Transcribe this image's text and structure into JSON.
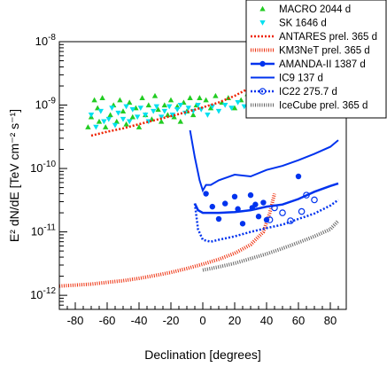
{
  "chart_data": {
    "type": "scatter",
    "xlabel": "Declination [degrees]",
    "ylabel": "E² dN/dE [TeV cm⁻² s⁻¹]",
    "xlim": [
      -90,
      90
    ],
    "ylim": [
      6e-13,
      1e-08
    ],
    "yscale": "log",
    "x_ticks": [
      -80,
      -60,
      -40,
      -20,
      0,
      20,
      40,
      60,
      80
    ],
    "x_tick_labels": [
      "-80",
      "-60",
      "-40",
      "-20",
      "0",
      "20",
      "40",
      "60",
      "80"
    ],
    "y_ticks": [
      1e-12,
      1e-11,
      1e-10,
      1e-09,
      1e-08
    ],
    "y_tick_labels": [
      {
        "base": "10",
        "exp": "-12"
      },
      {
        "base": "10",
        "exp": "-11"
      },
      {
        "base": "10",
        "exp": "-10"
      },
      {
        "base": "10",
        "exp": "-9"
      },
      {
        "base": "10",
        "exp": "-8"
      }
    ],
    "legend_position": "top-right",
    "series": [
      {
        "name": "MACRO 2044 d",
        "kind": "markers",
        "marker": "triangle-up",
        "color": "#22cc22",
        "points": [
          [
            -72,
            4.5e-10
          ],
          [
            -70,
            6.5e-10
          ],
          [
            -68,
            1.2e-09
          ],
          [
            -66,
            9e-10
          ],
          [
            -65,
            5.5e-10
          ],
          [
            -63,
            1.3e-09
          ],
          [
            -61,
            4.5e-10
          ],
          [
            -58,
            7e-10
          ],
          [
            -56,
            1e-09
          ],
          [
            -54,
            5.5e-10
          ],
          [
            -52,
            1.2e-09
          ],
          [
            -50,
            8e-10
          ],
          [
            -48,
            5e-10
          ],
          [
            -46,
            1.1e-09
          ],
          [
            -44,
            6.5e-10
          ],
          [
            -42,
            9e-10
          ],
          [
            -40,
            4.5e-10
          ],
          [
            -38,
            1.3e-09
          ],
          [
            -36,
            7e-10
          ],
          [
            -34,
            1e-09
          ],
          [
            -32,
            6e-10
          ],
          [
            -30,
            1.4e-09
          ],
          [
            -28,
            8.5e-10
          ],
          [
            -26,
            5.5e-10
          ],
          [
            -24,
            1e-09
          ],
          [
            -22,
            7e-10
          ],
          [
            -20,
            1.2e-09
          ],
          [
            -18,
            6.5e-10
          ],
          [
            -16,
            9.5e-10
          ],
          [
            -14,
            5.5e-10
          ],
          [
            -12,
            1.1e-09
          ],
          [
            -10,
            8e-10
          ],
          [
            -8,
            1.3e-09
          ],
          [
            -6,
            7e-10
          ],
          [
            -4,
            1e-09
          ],
          [
            -2,
            1.3e-09
          ],
          [
            2,
            1.2e-09
          ],
          [
            5,
            9e-10
          ],
          [
            8,
            1.4e-09
          ],
          [
            12,
            1.1e-09
          ],
          [
            16,
            1.3e-09
          ],
          [
            20,
            9e-10
          ],
          [
            24,
            1.2e-09
          ],
          [
            28,
            1.5e-09
          ],
          [
            32,
            1.1e-09
          ],
          [
            36,
            1.3e-09
          ],
          [
            40,
            1.2e-09
          ],
          [
            45,
            1.6e-09
          ],
          [
            50,
            1.3e-09
          ],
          [
            55,
            1.5e-09
          ],
          [
            60,
            2.2e-09
          ],
          [
            65,
            4e-09
          ],
          [
            68,
            5e-09
          ]
        ]
      },
      {
        "name": "SK 1646 d",
        "kind": "markers",
        "marker": "triangle-down",
        "color": "#00e0f0",
        "points": [
          [
            -70,
            7e-10
          ],
          [
            -67,
            4.5e-10
          ],
          [
            -64,
            8e-10
          ],
          [
            -62,
            5.5e-10
          ],
          [
            -59,
            6e-10
          ],
          [
            -57,
            9e-10
          ],
          [
            -55,
            4.8e-10
          ],
          [
            -53,
            7.5e-10
          ],
          [
            -50,
            6e-10
          ],
          [
            -48,
            9.5e-10
          ],
          [
            -46,
            5.5e-10
          ],
          [
            -44,
            8.5e-10
          ],
          [
            -41,
            6.5e-10
          ],
          [
            -39,
            9e-10
          ],
          [
            -36,
            7e-10
          ],
          [
            -34,
            5.5e-10
          ],
          [
            -31,
            8e-10
          ],
          [
            -29,
            9.5e-10
          ],
          [
            -26,
            6.5e-10
          ],
          [
            -24,
            8e-10
          ],
          [
            -21,
            9.5e-10
          ],
          [
            -19,
            7e-10
          ],
          [
            -16,
            8.5e-10
          ],
          [
            -14,
            1e-09
          ],
          [
            -11,
            7.5e-10
          ],
          [
            -9,
            9e-10
          ],
          [
            -6,
            8e-10
          ],
          [
            -3,
            1e-09
          ],
          [
            -1,
            8.5e-10
          ],
          [
            3,
            7e-10
          ],
          [
            6,
            9.5e-10
          ],
          [
            10,
            8e-10
          ],
          [
            14,
            1e-09
          ],
          [
            18,
            9e-10
          ],
          [
            22,
            1.1e-09
          ],
          [
            26,
            9.5e-10
          ],
          [
            30,
            1.2e-09
          ],
          [
            34,
            1e-09
          ],
          [
            38,
            1.3e-09
          ],
          [
            42,
            1.1e-09
          ],
          [
            46,
            1.3e-09
          ]
        ]
      },
      {
        "name": "ANTARES prel. 365 d",
        "kind": "line",
        "style": "dotted",
        "color": "#ee2200",
        "points": [
          [
            -70,
            3.3e-10
          ],
          [
            -60,
            3.8e-10
          ],
          [
            -50,
            4.3e-10
          ],
          [
            -40,
            5e-10
          ],
          [
            -30,
            5.8e-10
          ],
          [
            -20,
            6.7e-10
          ],
          [
            -10,
            7.8e-10
          ],
          [
            0,
            9.2e-10
          ],
          [
            10,
            1.1e-09
          ],
          [
            20,
            1.4e-09
          ],
          [
            30,
            1.9e-09
          ],
          [
            40,
            3e-09
          ],
          [
            47,
            5.5e-09
          ]
        ]
      },
      {
        "name": "KM3NeT prel. 365 d",
        "kind": "line",
        "style": "dense",
        "color": "#ee3311",
        "points": [
          [
            -90,
            1.4e-12
          ],
          [
            -80,
            1.45e-12
          ],
          [
            -70,
            1.5e-12
          ],
          [
            -60,
            1.6e-12
          ],
          [
            -50,
            1.7e-12
          ],
          [
            -40,
            1.85e-12
          ],
          [
            -30,
            2.05e-12
          ],
          [
            -20,
            2.3e-12
          ],
          [
            -10,
            2.65e-12
          ],
          [
            0,
            3.1e-12
          ],
          [
            10,
            3.7e-12
          ],
          [
            20,
            4.6e-12
          ],
          [
            30,
            6.3e-12
          ],
          [
            38,
            1e-11
          ],
          [
            42,
            2e-11
          ],
          [
            45,
            4e-11
          ]
        ]
      },
      {
        "name": "AMANDA-II 1387 d",
        "kind": "markers",
        "marker": "circle-filled",
        "color": "#0033ee",
        "points": [
          [
            2,
            4e-11
          ],
          [
            6,
            2.5e-11
          ],
          [
            10,
            1.6e-11
          ],
          [
            14,
            2.8e-11
          ],
          [
            20,
            3.6e-11
          ],
          [
            22,
            2.3e-11
          ],
          [
            25,
            1.35e-11
          ],
          [
            30,
            3.8e-11
          ],
          [
            31,
            2.4e-11
          ],
          [
            33,
            2.7e-11
          ],
          [
            35,
            1.75e-11
          ],
          [
            38,
            2.9e-11
          ],
          [
            40,
            1.55e-11
          ],
          [
            60,
            7.5e-11
          ]
        ]
      },
      {
        "name": "AMANDA-II 1387 d",
        "kind": "line",
        "style": "solid-thick",
        "color": "#0033ee",
        "points": [
          [
            -5,
            2.8e-11
          ],
          [
            -3,
            2.2e-11
          ],
          [
            0,
            2e-11
          ],
          [
            10,
            2e-11
          ],
          [
            20,
            2.05e-11
          ],
          [
            30,
            2.2e-11
          ],
          [
            40,
            2.5e-11
          ],
          [
            50,
            2.7e-11
          ],
          [
            60,
            3.3e-11
          ],
          [
            70,
            4.3e-11
          ],
          [
            80,
            5.3e-11
          ],
          [
            85,
            5.8e-11
          ]
        ]
      },
      {
        "name": "IC9 137 d",
        "kind": "line",
        "style": "solid",
        "color": "#0033ee",
        "points": [
          [
            -8,
            4e-10
          ],
          [
            -5,
            1.5e-10
          ],
          [
            -2,
            6.5e-11
          ],
          [
            0,
            4.5e-11
          ],
          [
            2,
            5.5e-11
          ],
          [
            5,
            5.5e-11
          ],
          [
            10,
            6.5e-11
          ],
          [
            20,
            8e-11
          ],
          [
            30,
            7.5e-11
          ],
          [
            40,
            9.5e-11
          ],
          [
            50,
            1.1e-10
          ],
          [
            60,
            1.35e-10
          ],
          [
            70,
            1.7e-10
          ],
          [
            80,
            2.2e-10
          ],
          [
            85,
            2.8e-10
          ]
        ]
      },
      {
        "name": "IC22 275.7 d",
        "kind": "markers",
        "marker": "circle-open",
        "color": "#0033ee",
        "points": [
          [
            42,
            1.55e-11
          ],
          [
            45,
            2.4e-11
          ],
          [
            50,
            2e-11
          ],
          [
            55,
            1.5e-11
          ],
          [
            62,
            2.1e-11
          ],
          [
            65,
            3.8e-11
          ],
          [
            70,
            3.2e-11
          ]
        ]
      },
      {
        "name": "IC22 275.7 d",
        "kind": "line",
        "style": "dotted",
        "color": "#0033ee",
        "points": [
          [
            -5,
            2.8e-11
          ],
          [
            -3,
            1.1e-11
          ],
          [
            0,
            7.5e-12
          ],
          [
            5,
            7e-12
          ],
          [
            10,
            7.5e-12
          ],
          [
            20,
            8.5e-12
          ],
          [
            30,
            1e-11
          ],
          [
            40,
            1.15e-11
          ],
          [
            50,
            1.3e-11
          ],
          [
            60,
            1.6e-11
          ],
          [
            70,
            1.95e-11
          ],
          [
            80,
            2.6e-11
          ],
          [
            85,
            3.2e-11
          ]
        ]
      },
      {
        "name": "IceCube prel. 365 d",
        "kind": "line",
        "style": "dense",
        "color": "#666666",
        "points": [
          [
            0,
            2.5e-12
          ],
          [
            10,
            2.8e-12
          ],
          [
            20,
            3.2e-12
          ],
          [
            30,
            3.8e-12
          ],
          [
            40,
            4.5e-12
          ],
          [
            50,
            5.5e-12
          ],
          [
            60,
            6.8e-12
          ],
          [
            70,
            8.5e-12
          ],
          [
            80,
            1.1e-11
          ],
          [
            85,
            1.5e-11
          ]
        ]
      }
    ],
    "legend": [
      {
        "label": "MACRO 2044 d",
        "marker": "triangle-up",
        "color": "#22cc22"
      },
      {
        "label": "SK 1646 d",
        "marker": "triangle-down",
        "color": "#00e0f0"
      },
      {
        "label": "ANTARES prel. 365 d",
        "line": "dotted",
        "color": "#ee2200"
      },
      {
        "label": "KM3NeT prel. 365 d",
        "line": "dense",
        "color": "#ee3311"
      },
      {
        "label": "AMANDA-II 1387 d",
        "line": "solid-thick",
        "marker": "circle-filled",
        "color": "#0033ee"
      },
      {
        "label": "IC9 137 d",
        "line": "solid",
        "color": "#0033ee"
      },
      {
        "label": "IC22 275.7 d",
        "line": "dotted",
        "marker": "circle-open",
        "color": "#0033ee"
      },
      {
        "label": "IceCube prel. 365 d",
        "line": "dense",
        "color": "#666666"
      }
    ]
  }
}
